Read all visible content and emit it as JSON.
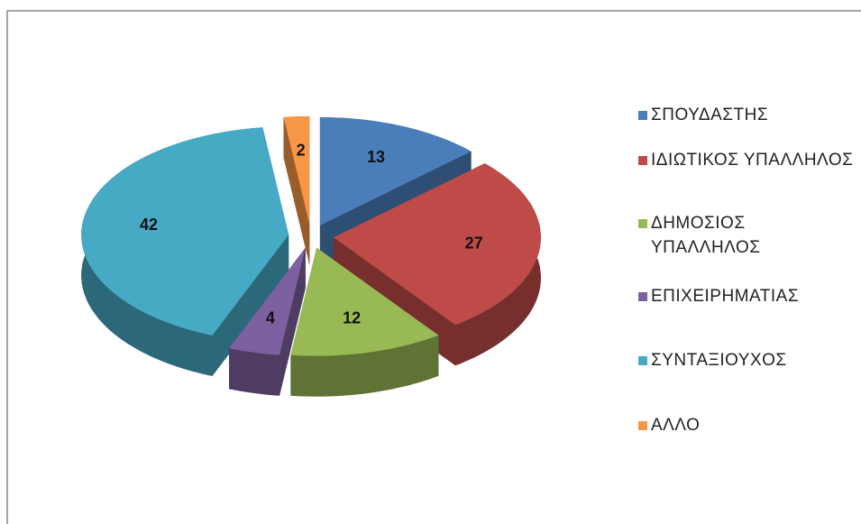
{
  "chart_data": {
    "type": "pie",
    "categories": [
      "ΣΠΟΥΔΑΣΤΗΣ",
      "ΙΔΙΩΤΙΚΟΣ ΥΠΑΛΛΗΛΟΣ",
      "ΔΗΜΟΣΙΟΣ ΥΠΑΛΛΗΛΟΣ",
      "ΕΠΙΧΕΙΡΗΜΑΤΙΑΣ",
      "ΣΥΝΤΑΞΙΟΥΧΟΣ",
      "ΑΛΛΟ"
    ],
    "values": [
      13,
      27,
      12,
      4,
      42,
      2
    ],
    "colors": [
      "#4a7ebb",
      "#be4b48",
      "#98b954",
      "#7d60a0",
      "#46aac5",
      "#f79646"
    ],
    "legend": "right"
  }
}
